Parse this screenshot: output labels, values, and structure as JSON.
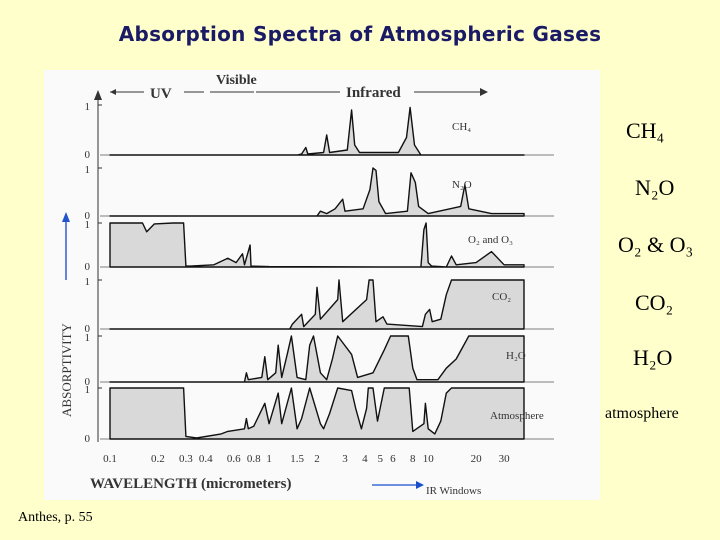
{
  "title": "Absorption Spectra of Atmospheric Gases",
  "credit": "Anthes, p. 55",
  "chart_data": {
    "type": "area",
    "xlabel": "WAVELENGTH (micrometers)",
    "ylabel": "ABSORPTIVITY",
    "x_scale": "log",
    "xlim": [
      0.1,
      40
    ],
    "x_ticks": [
      "0.1",
      "0.2",
      "0.3",
      "0.4",
      "0.6",
      "0.8",
      "1",
      "1.5",
      "2",
      "3",
      "4",
      "5",
      "6",
      "8",
      "10",
      "20",
      "30"
    ],
    "x_tick_values": [
      0.1,
      0.2,
      0.3,
      0.4,
      0.6,
      0.8,
      1,
      1.5,
      2,
      3,
      4,
      5,
      6,
      8,
      10,
      20,
      30
    ],
    "ylim": [
      0,
      1
    ],
    "y_tick_labels": [
      "0",
      "1"
    ],
    "regions": [
      {
        "label": "UV",
        "range": [
          0.1,
          0.4
        ]
      },
      {
        "label": "Visible",
        "range": [
          0.4,
          0.7
        ]
      },
      {
        "label": "Infrared",
        "range": [
          0.7,
          40
        ]
      }
    ],
    "annotation": "IR Windows",
    "series": [
      {
        "name": "CH4",
        "points": [
          [
            0.1,
            0
          ],
          [
            1.5,
            0
          ],
          [
            1.6,
            0.02
          ],
          [
            1.7,
            0.15
          ],
          [
            1.75,
            0.02
          ],
          [
            2.2,
            0.05
          ],
          [
            2.3,
            0.4
          ],
          [
            2.4,
            0.05
          ],
          [
            3.1,
            0.1
          ],
          [
            3.3,
            0.9
          ],
          [
            3.45,
            0.2
          ],
          [
            3.7,
            0.05
          ],
          [
            6.5,
            0.05
          ],
          [
            7.3,
            0.35
          ],
          [
            7.7,
            0.95
          ],
          [
            8.2,
            0.2
          ],
          [
            9,
            0
          ],
          [
            40,
            0
          ]
        ]
      },
      {
        "name": "N2O",
        "points": [
          [
            0.1,
            0
          ],
          [
            2.0,
            0
          ],
          [
            2.1,
            0.1
          ],
          [
            2.3,
            0.05
          ],
          [
            2.6,
            0.15
          ],
          [
            2.9,
            0.35
          ],
          [
            3.0,
            0.1
          ],
          [
            3.9,
            0.15
          ],
          [
            4.3,
            0.55
          ],
          [
            4.5,
            1
          ],
          [
            4.7,
            0.95
          ],
          [
            4.9,
            0.3
          ],
          [
            5.4,
            0.05
          ],
          [
            7.4,
            0.1
          ],
          [
            7.8,
            0.9
          ],
          [
            8.3,
            0.7
          ],
          [
            8.7,
            0.2
          ],
          [
            10,
            0.05
          ],
          [
            16,
            0.2
          ],
          [
            17,
            0.65
          ],
          [
            18,
            0.15
          ],
          [
            25,
            0.05
          ],
          [
            40,
            0.05
          ]
        ]
      },
      {
        "name": "O2 and O3",
        "points": [
          [
            0.1,
            1
          ],
          [
            0.16,
            1
          ],
          [
            0.17,
            0.8
          ],
          [
            0.19,
            0.98
          ],
          [
            0.25,
            1
          ],
          [
            0.29,
            1
          ],
          [
            0.3,
            0.02
          ],
          [
            0.32,
            0.02
          ],
          [
            0.45,
            0.05
          ],
          [
            0.55,
            0.2
          ],
          [
            0.62,
            0.1
          ],
          [
            0.68,
            0.3
          ],
          [
            0.7,
            0.05
          ],
          [
            0.76,
            0.5
          ],
          [
            0.77,
            0.02
          ],
          [
            1.0,
            0.01
          ],
          [
            9.0,
            0
          ],
          [
            9.4,
            0.85
          ],
          [
            9.7,
            1
          ],
          [
            10,
            0.1
          ],
          [
            10.5,
            0.02
          ],
          [
            13,
            0
          ],
          [
            14,
            0.25
          ],
          [
            15,
            0.05
          ],
          [
            20,
            0.1
          ],
          [
            25,
            0.35
          ],
          [
            30,
            0.05
          ],
          [
            40,
            0.05
          ]
        ]
      },
      {
        "name": "CO2",
        "points": [
          [
            0.1,
            0
          ],
          [
            1.35,
            0
          ],
          [
            1.4,
            0.1
          ],
          [
            1.6,
            0.3
          ],
          [
            1.65,
            0.05
          ],
          [
            1.95,
            0.3
          ],
          [
            2.0,
            0.85
          ],
          [
            2.1,
            0.2
          ],
          [
            2.7,
            0.6
          ],
          [
            2.75,
            1
          ],
          [
            2.9,
            0.15
          ],
          [
            4.1,
            0.6
          ],
          [
            4.25,
            1
          ],
          [
            4.5,
            1
          ],
          [
            4.7,
            0.15
          ],
          [
            5.2,
            0.25
          ],
          [
            5.5,
            0.1
          ],
          [
            9.2,
            0.05
          ],
          [
            9.6,
            0.3
          ],
          [
            10.2,
            0.4
          ],
          [
            10.6,
            0.15
          ],
          [
            12,
            0.2
          ],
          [
            13,
            0.7
          ],
          [
            14,
            1
          ],
          [
            40,
            1
          ]
        ]
      },
      {
        "name": "H2O",
        "points": [
          [
            0.1,
            0
          ],
          [
            0.7,
            0
          ],
          [
            0.72,
            0.2
          ],
          [
            0.74,
            0.05
          ],
          [
            0.9,
            0.1
          ],
          [
            0.94,
            0.55
          ],
          [
            0.98,
            0.05
          ],
          [
            1.1,
            0.2
          ],
          [
            1.14,
            0.8
          ],
          [
            1.2,
            0.1
          ],
          [
            1.3,
            0.6
          ],
          [
            1.38,
            1
          ],
          [
            1.5,
            0.1
          ],
          [
            1.7,
            0.05
          ],
          [
            1.8,
            0.8
          ],
          [
            1.9,
            1
          ],
          [
            2.1,
            0.2
          ],
          [
            2.3,
            0.05
          ],
          [
            2.5,
            0.5
          ],
          [
            2.7,
            1
          ],
          [
            3.3,
            0.6
          ],
          [
            3.6,
            0.1
          ],
          [
            4.5,
            0.2
          ],
          [
            5.3,
            0.7
          ],
          [
            5.8,
            1
          ],
          [
            7.5,
            1
          ],
          [
            8.0,
            0.3
          ],
          [
            8.5,
            0.05
          ],
          [
            11.5,
            0.05
          ],
          [
            13,
            0.3
          ],
          [
            15,
            0.5
          ],
          [
            18,
            1
          ],
          [
            40,
            1
          ]
        ]
      },
      {
        "name": "Atmosphere",
        "points": [
          [
            0.1,
            1
          ],
          [
            0.29,
            1
          ],
          [
            0.3,
            0.05
          ],
          [
            0.35,
            0.02
          ],
          [
            0.5,
            0.1
          ],
          [
            0.55,
            0.15
          ],
          [
            0.7,
            0.2
          ],
          [
            0.72,
            0.4
          ],
          [
            0.74,
            0.2
          ],
          [
            0.8,
            0.25
          ],
          [
            0.94,
            0.7
          ],
          [
            1.0,
            0.3
          ],
          [
            1.14,
            0.9
          ],
          [
            1.2,
            0.3
          ],
          [
            1.38,
            1
          ],
          [
            1.5,
            0.2
          ],
          [
            1.6,
            0.4
          ],
          [
            1.8,
            1
          ],
          [
            2.1,
            0.3
          ],
          [
            2.2,
            0.2
          ],
          [
            2.4,
            0.5
          ],
          [
            2.7,
            1
          ],
          [
            3.3,
            0.95
          ],
          [
            3.5,
            0.6
          ],
          [
            3.8,
            0.2
          ],
          [
            4.1,
            0.6
          ],
          [
            4.2,
            1
          ],
          [
            4.5,
            1
          ],
          [
            4.8,
            0.35
          ],
          [
            5.3,
            1
          ],
          [
            7.6,
            1
          ],
          [
            8.0,
            0.15
          ],
          [
            9.4,
            0.3
          ],
          [
            9.6,
            0.7
          ],
          [
            10,
            0.2
          ],
          [
            11,
            0.1
          ],
          [
            12,
            0.35
          ],
          [
            13,
            0.9
          ],
          [
            14,
            1
          ],
          [
            40,
            1
          ]
        ]
      }
    ],
    "legend_right": [
      "CH₄",
      "N₂O",
      "O₂ & O₃",
      "CO₂",
      "H₂O",
      "atmosphere"
    ],
    "panel_labels": [
      "CH₄",
      "N₂O",
      "O₂ and O₃",
      "CO₂",
      "H₂O",
      "Atmosphere"
    ]
  }
}
